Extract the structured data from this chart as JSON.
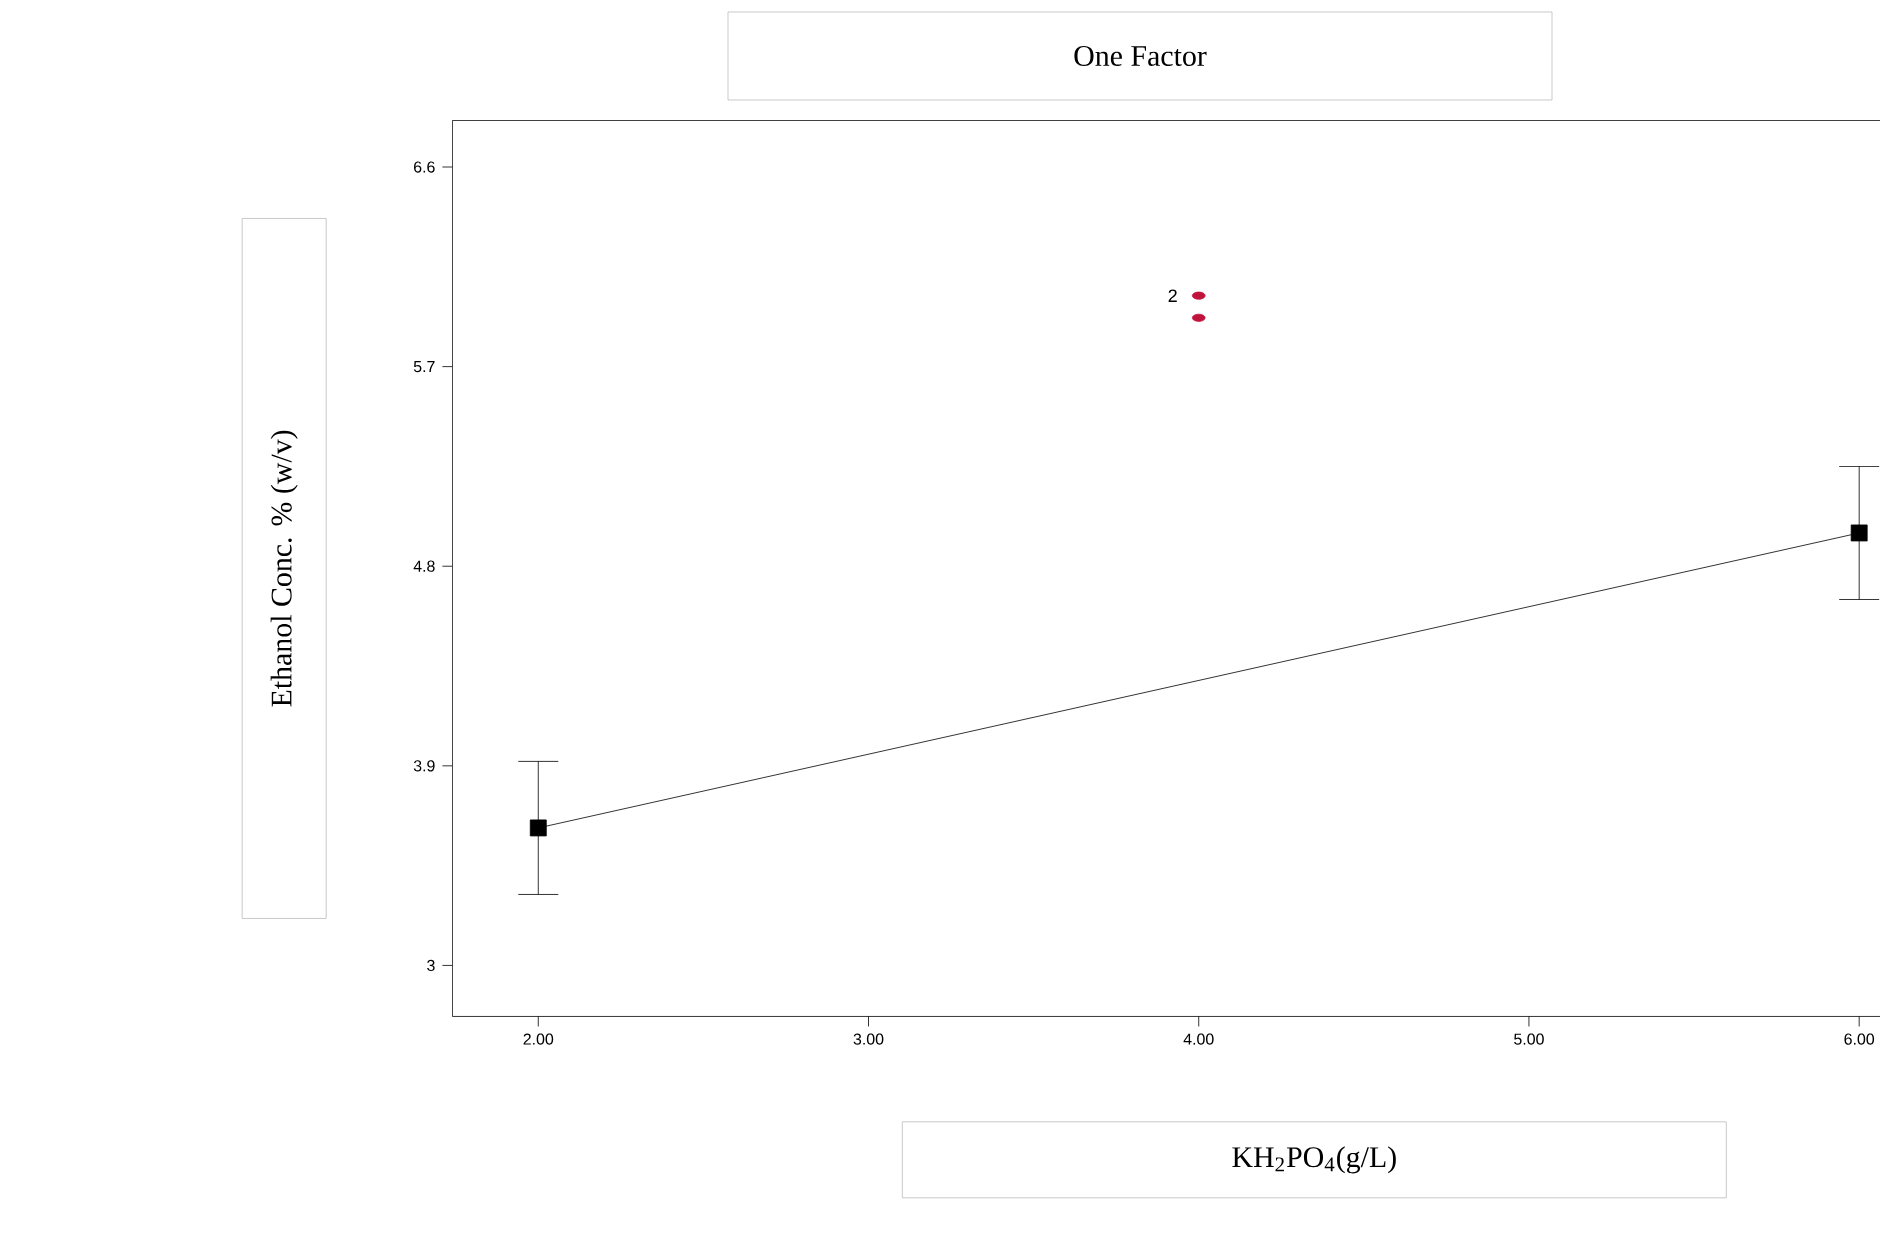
{
  "chart_data": {
    "type": "line",
    "title": "One Factor",
    "xlabel": "KH$_{2}$PO$_{4}$(g/L)",
    "ylabel": "Ethanol Conc. % (w/v)",
    "xlim": [
      1.74,
      6.24
    ],
    "ylim": [
      2.77,
      6.81
    ],
    "xticks": [
      {
        "value": 2,
        "label": "2.00"
      },
      {
        "value": 3,
        "label": "3.00"
      },
      {
        "value": 4,
        "label": "4.00"
      },
      {
        "value": 5,
        "label": "5.00"
      },
      {
        "value": 6,
        "label": "6.00"
      }
    ],
    "yticks": [
      3,
      3.9,
      4.8,
      5.7,
      6.6
    ],
    "series": [
      {
        "color": "#000000",
        "x": [
          2,
          6
        ],
        "values": [
          3.62,
          4.95
        ],
        "errors": [
          0.3,
          0.3
        ],
        "marker": "square"
      },
      {
        "type": "scatter",
        "color": "#c0143c",
        "x": [
          4,
          4
        ],
        "values": [
          6.02,
          5.92
        ],
        "marker": "circle"
      }
    ],
    "annotations": [
      {
        "text": "2",
        "x": 4,
        "y": 6.02
      }
    ]
  }
}
